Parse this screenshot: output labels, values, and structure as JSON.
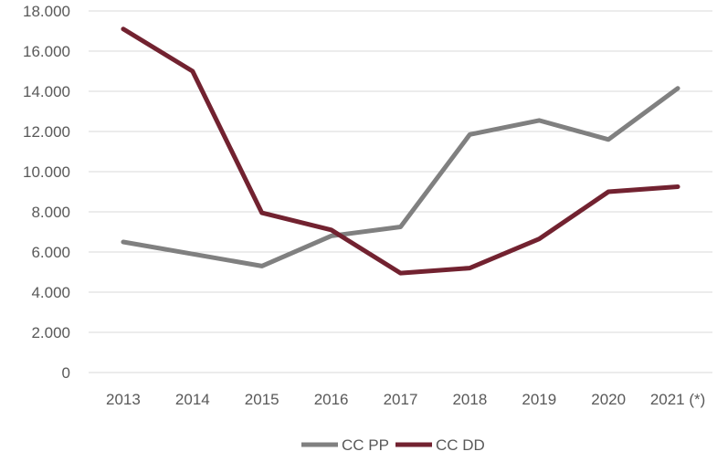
{
  "chart_data": {
    "type": "line",
    "title": "",
    "xlabel": "",
    "ylabel": "",
    "categories": [
      "2013",
      "2014",
      "2015",
      "2016",
      "2017",
      "2018",
      "2019",
      "2020",
      "2021 (*)"
    ],
    "ylim": [
      0,
      18000
    ],
    "yticks": [
      0,
      2000,
      4000,
      6000,
      8000,
      10000,
      12000,
      14000,
      16000,
      18000
    ],
    "ytick_labels": [
      "0",
      "2.000",
      "4.000",
      "6.000",
      "8.000",
      "10.000",
      "12.000",
      "14.000",
      "16.000",
      "18.000"
    ],
    "grid": true,
    "legend_position": "bottom",
    "series": [
      {
        "name": "CC PP",
        "color": "#808080",
        "values": [
          6500,
          5900,
          5300,
          6800,
          7250,
          11850,
          12550,
          11600,
          14150
        ]
      },
      {
        "name": "CC DD",
        "color": "#722230",
        "values": [
          17100,
          15000,
          7950,
          7100,
          4950,
          5200,
          6650,
          9000,
          9250
        ]
      }
    ]
  }
}
